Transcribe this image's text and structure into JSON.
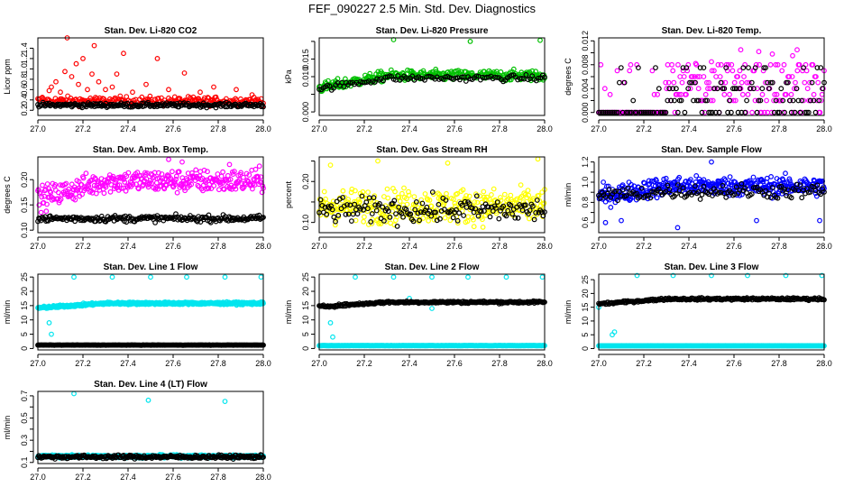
{
  "page_title": "FEF_090227  2.5 Min. Std. Dev. Diagnostics",
  "chart_data": [
    {
      "type": "scatter",
      "title": "Stan. Dev. Li-820 CO2",
      "ylabel": "Licor ppm",
      "xlim": [
        27.0,
        28.0
      ],
      "xticks": [
        27.0,
        27.2,
        27.4,
        27.6,
        27.8,
        28.0
      ],
      "xtick_labels": [
        "27.0",
        "27.2",
        "27.4",
        "27.6",
        "27.8",
        "28.0"
      ],
      "ylim": [
        0.1,
        1.6
      ],
      "yticks": [
        0.2,
        0.4,
        0.6,
        0.8,
        1.0,
        1.2,
        1.4
      ],
      "ytick_labels": [
        "0.2",
        "0.4",
        "0.6",
        "0.8",
        "1.0",
        "1.2",
        "1.4"
      ],
      "series": [
        {
          "name": "red",
          "color": "#ff0000",
          "base": 0.38,
          "noise": 0.08,
          "density": 1,
          "outliers": [
            [
              27.02,
              0.45
            ],
            [
              27.05,
              0.58
            ],
            [
              27.06,
              0.65
            ],
            [
              27.08,
              0.75
            ],
            [
              27.1,
              0.55
            ],
            [
              27.12,
              0.95
            ],
            [
              27.13,
              1.6
            ],
            [
              27.15,
              0.85
            ],
            [
              27.17,
              1.1
            ],
            [
              27.18,
              0.7
            ],
            [
              27.2,
              1.2
            ],
            [
              27.22,
              0.6
            ],
            [
              27.24,
              0.9
            ],
            [
              27.25,
              1.45
            ],
            [
              27.27,
              0.75
            ],
            [
              27.3,
              0.6
            ],
            [
              27.33,
              0.65
            ],
            [
              27.35,
              0.9
            ],
            [
              27.38,
              1.3
            ],
            [
              27.42,
              0.55
            ],
            [
              27.48,
              0.7
            ],
            [
              27.53,
              1.2
            ],
            [
              27.58,
              0.6
            ],
            [
              27.65,
              0.92
            ],
            [
              27.72,
              0.55
            ],
            [
              27.78,
              0.65
            ],
            [
              27.88,
              0.6
            ],
            [
              27.95,
              0.5
            ]
          ]
        },
        {
          "name": "black",
          "color": "#000000",
          "base": 0.3,
          "noise": 0.04,
          "density": 1,
          "outliers": []
        }
      ]
    },
    {
      "type": "scatter",
      "title": "Stan. Dev. Li-820 Pressure",
      "ylabel": "kPa",
      "xlim": [
        27.0,
        28.0
      ],
      "xticks": [
        27.0,
        27.2,
        27.4,
        27.6,
        27.8,
        28.0
      ],
      "xtick_labels": [
        "27.0",
        "27.2",
        "27.4",
        "27.6",
        "27.8",
        "28.0"
      ],
      "ylim": [
        -0.001,
        0.021
      ],
      "yticks": [
        0.0,
        0.005,
        0.01,
        0.015,
        0.02
      ],
      "ytick_labels": [
        "0.000",
        "",
        "0.010",
        "0.015",
        ""
      ],
      "series": [
        {
          "name": "green",
          "color": "#00c000",
          "base": 0.0068,
          "noise": 0.0014,
          "ramp": 0.0035,
          "density": 1.5,
          "outliers": [
            [
              27.33,
              0.0205
            ],
            [
              27.67,
              0.02
            ],
            [
              27.98,
              0.0203
            ]
          ]
        },
        {
          "name": "black",
          "color": "#000000",
          "base": 0.0066,
          "noise": 0.0008,
          "ramp": 0.003,
          "density": 0.5,
          "outliers": []
        }
      ]
    },
    {
      "type": "scatter",
      "title": "Stan. Dev. Li-820 Temp.",
      "ylabel": "degrees C",
      "xlim": [
        27.0,
        28.0
      ],
      "xticks": [
        27.0,
        27.2,
        27.4,
        27.6,
        27.8,
        28.0
      ],
      "xtick_labels": [
        "27.0",
        "27.2",
        "27.4",
        "27.6",
        "27.8",
        "28.0"
      ],
      "ylim": [
        -0.0005,
        0.0125
      ],
      "yticks": [
        0.0,
        0.002,
        0.004,
        0.006,
        0.008,
        0.01,
        0.012
      ],
      "ytick_labels": [
        "0.000",
        "",
        "0.004",
        "",
        "0.008",
        "",
        "0.012"
      ],
      "series": [
        {
          "name": "magenta",
          "color": "#ff00ff",
          "levels": [
            0.0,
            0.002,
            0.003,
            0.004,
            0.005,
            0.006,
            0.007,
            0.008
          ],
          "start": 27.3,
          "density": 1,
          "outliers": [
            [
              27.43,
              0.0082
            ],
            [
              27.5,
              0.0085
            ],
            [
              27.63,
              0.0105
            ],
            [
              27.71,
              0.0102
            ],
            [
              27.77,
              0.0098
            ],
            [
              27.86,
              0.0095
            ],
            [
              27.88,
              0.0105
            ]
          ]
        },
        {
          "name": "black",
          "color": "#000000",
          "levels": [
            0.0,
            0.002,
            0.004,
            0.005,
            0.0075
          ],
          "start": 27.3,
          "density": 0.6,
          "outliers": []
        }
      ]
    },
    {
      "type": "scatter",
      "title": "Stan. Dev. Amb. Box Temp.",
      "ylabel": "degrees C",
      "xlim": [
        27.0,
        28.0
      ],
      "xticks": [
        27.0,
        27.2,
        27.4,
        27.6,
        27.8,
        28.0
      ],
      "xtick_labels": [
        "27.0",
        "27.2",
        "27.4",
        "27.6",
        "27.8",
        "28.0"
      ],
      "ylim": [
        0.095,
        0.245
      ],
      "yticks": [
        0.1,
        0.15,
        0.2
      ],
      "ytick_labels": [
        "0.10",
        "0.15",
        "0.20"
      ],
      "series": [
        {
          "name": "magenta",
          "color": "#ff00ff",
          "base": 0.162,
          "noise": 0.022,
          "ramp": 0.035,
          "density": 1.6,
          "outliers": [
            [
              27.58,
              0.24
            ],
            [
              27.64,
              0.235
            ],
            [
              27.85,
              0.23
            ]
          ]
        },
        {
          "name": "black",
          "color": "#000000",
          "base": 0.123,
          "noise": 0.006,
          "density": 1,
          "outliers": []
        }
      ]
    },
    {
      "type": "scatter",
      "title": "Stan. Dev. Gas Stream RH",
      "ylabel": "percent",
      "xlim": [
        27.0,
        28.0
      ],
      "xticks": [
        27.0,
        27.2,
        27.4,
        27.6,
        27.8,
        28.0
      ],
      "xtick_labels": [
        "27.0",
        "27.2",
        "27.4",
        "27.6",
        "27.8",
        "28.0"
      ],
      "ylim": [
        0.075,
        0.26
      ],
      "yticks": [
        0.1,
        0.15,
        0.2,
        0.25
      ],
      "ytick_labels": [
        "0.10",
        "",
        "0.20",
        ""
      ],
      "series": [
        {
          "name": "yellow",
          "color": "#ffff00",
          "base": 0.14,
          "noise": 0.04,
          "density": 1.6,
          "outliers": [
            [
              27.05,
              0.24
            ],
            [
              27.26,
              0.25
            ],
            [
              27.57,
              0.245
            ],
            [
              27.97,
              0.255
            ]
          ]
        },
        {
          "name": "black",
          "color": "#000000",
          "base": 0.13,
          "noise": 0.03,
          "density": 0.7,
          "outliers": []
        }
      ]
    },
    {
      "type": "scatter",
      "title": "Stan. Dev. Sample Flow",
      "ylabel": "ml/min",
      "xlim": [
        27.0,
        28.0
      ],
      "xticks": [
        27.0,
        27.2,
        27.4,
        27.6,
        27.8,
        28.0
      ],
      "xtick_labels": [
        "27.0",
        "27.2",
        "27.4",
        "27.6",
        "27.8",
        "28.0"
      ],
      "ylim": [
        0.5,
        1.25
      ],
      "yticks": [
        0.6,
        0.7,
        0.8,
        0.9,
        1.0,
        1.1,
        1.2
      ],
      "ytick_labels": [
        "0.6",
        "",
        "0.8",
        "",
        "1.0",
        "",
        "1.2"
      ],
      "series": [
        {
          "name": "blue",
          "color": "#0000ff",
          "base": 0.86,
          "noise": 0.09,
          "ramp": 0.1,
          "density": 1.8,
          "outliers": [
            [
              27.03,
              0.6
            ],
            [
              27.1,
              0.62
            ],
            [
              27.35,
              0.55
            ],
            [
              27.5,
              1.2
            ],
            [
              27.7,
              0.62
            ],
            [
              27.98,
              0.62
            ]
          ]
        },
        {
          "name": "black",
          "color": "#000000",
          "base": 0.86,
          "noise": 0.07,
          "ramp": 0.05,
          "density": 0.6,
          "outliers": []
        }
      ]
    },
    {
      "type": "scatter",
      "title": "Stan. Dev. Line 1 Flow",
      "ylabel": "ml/min",
      "xlim": [
        27.0,
        28.0
      ],
      "xticks": [
        27.0,
        27.2,
        27.4,
        27.6,
        27.8,
        28.0
      ],
      "xtick_labels": [
        "27.0",
        "27.2",
        "27.4",
        "27.6",
        "27.8",
        "28.0"
      ],
      "ylim": [
        -0.5,
        26
      ],
      "yticks": [
        0,
        5,
        10,
        15,
        20,
        25
      ],
      "ytick_labels": [
        "0",
        "5",
        "10",
        "15",
        "20",
        "25"
      ],
      "series": [
        {
          "name": "cyan",
          "color": "#00e5ee",
          "base": 14.2,
          "noise": 0.4,
          "ramp": 1.6,
          "density": 2.5,
          "outliers": [
            [
              27.05,
              9
            ],
            [
              27.06,
              5
            ],
            [
              27.16,
              25
            ],
            [
              27.33,
              25
            ],
            [
              27.5,
              25
            ],
            [
              27.66,
              25
            ],
            [
              27.83,
              25
            ],
            [
              27.99,
              25
            ]
          ]
        },
        {
          "name": "black",
          "color": "#000000",
          "base": 1.2,
          "noise": 0.05,
          "density": 1.3,
          "outliers": []
        }
      ]
    },
    {
      "type": "scatter",
      "title": "Stan. Dev. Line 2 Flow",
      "ylabel": "ml/min",
      "xlim": [
        27.0,
        28.0
      ],
      "xticks": [
        27.0,
        27.2,
        27.4,
        27.6,
        27.8,
        28.0
      ],
      "xtick_labels": [
        "27.0",
        "27.2",
        "27.4",
        "27.6",
        "27.8",
        "28.0"
      ],
      "ylim": [
        -0.5,
        26
      ],
      "yticks": [
        0,
        5,
        10,
        15,
        20,
        25
      ],
      "ytick_labels": [
        "0",
        "5",
        "10",
        "15",
        "20",
        "25"
      ],
      "series": [
        {
          "name": "cyan",
          "color": "#00e5ee",
          "base": 1.0,
          "noise": 0.03,
          "density": 2.2,
          "outliers": [
            [
              27.05,
              9
            ],
            [
              27.06,
              4
            ],
            [
              27.16,
              25
            ],
            [
              27.33,
              25
            ],
            [
              27.5,
              25
            ],
            [
              27.66,
              25
            ],
            [
              27.83,
              25
            ],
            [
              27.99,
              25
            ],
            [
              27.4,
              17.5
            ],
            [
              27.5,
              14
            ]
          ]
        },
        {
          "name": "black",
          "color": "#000000",
          "base": 14.6,
          "noise": 0.4,
          "ramp": 1.6,
          "density": 1.2,
          "outliers": []
        }
      ]
    },
    {
      "type": "scatter",
      "title": "Stan. Dev. Line 3 Flow",
      "ylabel": "ml/min",
      "xlim": [
        27.0,
        28.0
      ],
      "xticks": [
        27.0,
        27.2,
        27.4,
        27.6,
        27.8,
        28.0
      ],
      "xtick_labels": [
        "27.0",
        "27.2",
        "27.4",
        "27.6",
        "27.8",
        "28.0"
      ],
      "ylim": [
        -0.5,
        27
      ],
      "yticks": [
        0,
        5,
        10,
        15,
        20,
        25
      ],
      "ytick_labels": [
        "0",
        "5",
        "10",
        "15",
        "20",
        "25"
      ],
      "series": [
        {
          "name": "cyan",
          "color": "#00e5ee",
          "base": 1.0,
          "noise": 0.03,
          "density": 2.2,
          "outliers": [
            [
              27.06,
              5
            ],
            [
              27.07,
              6
            ],
            [
              27.17,
              26.5
            ],
            [
              27.33,
              26.5
            ],
            [
              27.5,
              26.5
            ],
            [
              27.66,
              26.5
            ],
            [
              27.83,
              26.5
            ],
            [
              27.99,
              26.5
            ],
            [
              27.0,
              15
            ]
          ]
        },
        {
          "name": "black",
          "color": "#000000",
          "base": 16.2,
          "noise": 0.4,
          "ramp": 1.8,
          "density": 1.2,
          "outliers": []
        }
      ]
    },
    {
      "type": "scatter",
      "title": "Stan. Dev. Line 4 (LT) Flow",
      "ylabel": "ml/min",
      "xlim": [
        27.0,
        28.0
      ],
      "xticks": [
        27.0,
        27.2,
        27.4,
        27.6,
        27.8,
        28.0
      ],
      "xtick_labels": [
        "27.0",
        "27.2",
        "27.4",
        "27.6",
        "27.8",
        "28.0"
      ],
      "ylim": [
        0.09,
        0.74
      ],
      "yticks": [
        0.1,
        0.2,
        0.3,
        0.4,
        0.5,
        0.6,
        0.7
      ],
      "ytick_labels": [
        "0.1",
        "",
        "0.3",
        "",
        "0.5",
        "",
        "0.7"
      ],
      "series": [
        {
          "name": "cyan",
          "color": "#00e5ee",
          "base": 0.155,
          "noise": 0.012,
          "density": 2.5,
          "outliers": [
            [
              27.16,
              0.72
            ],
            [
              27.49,
              0.66
            ],
            [
              27.83,
              0.65
            ]
          ]
        },
        {
          "name": "black",
          "color": "#000000",
          "base": 0.15,
          "noise": 0.015,
          "density": 1.2,
          "outliers": []
        }
      ]
    }
  ]
}
